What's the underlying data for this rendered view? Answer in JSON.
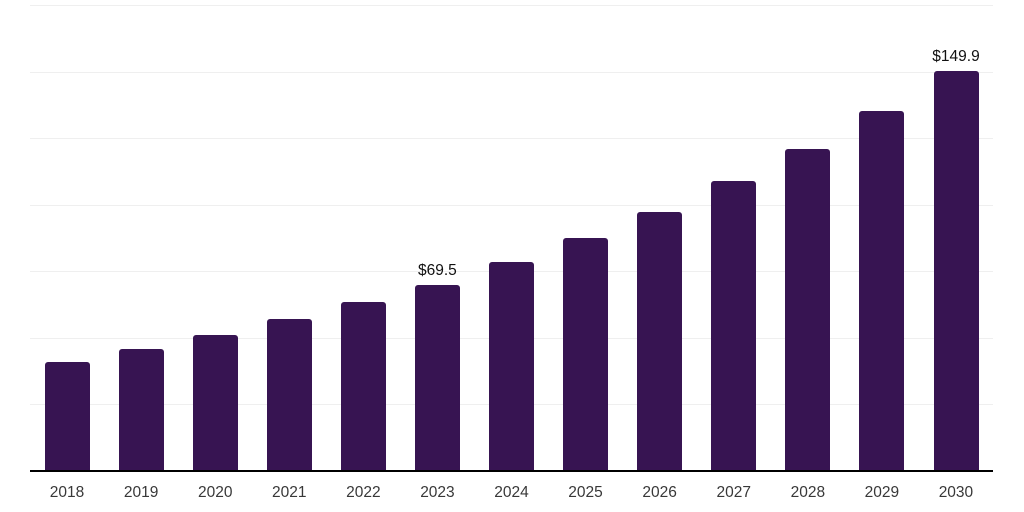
{
  "chart_data": {
    "type": "bar",
    "categories": [
      "2018",
      "2019",
      "2020",
      "2021",
      "2022",
      "2023",
      "2024",
      "2025",
      "2026",
      "2027",
      "2028",
      "2029",
      "2030"
    ],
    "values": [
      40.7,
      45.6,
      50.8,
      56.8,
      63.1,
      69.5,
      78.1,
      87.1,
      96.8,
      108.4,
      120.7,
      135.0,
      149.9
    ],
    "data_labels": [
      "",
      "",
      "",
      "",
      "",
      "$69.5",
      "",
      "",
      "",
      "",
      "",
      "",
      "$149.9"
    ],
    "xlabel": "",
    "ylabel": "",
    "ylim": [
      0,
      175
    ],
    "gridline_step": 25,
    "grid": "horizontal-only",
    "legend": "none",
    "y_tick_labels_visible": false,
    "bar_color": "#371452",
    "axis_line_color": "#000000",
    "gridline_color": "#efefef",
    "tick_label_color": "#383838",
    "data_label_color": "#111111",
    "background_color": "#ffffff"
  }
}
